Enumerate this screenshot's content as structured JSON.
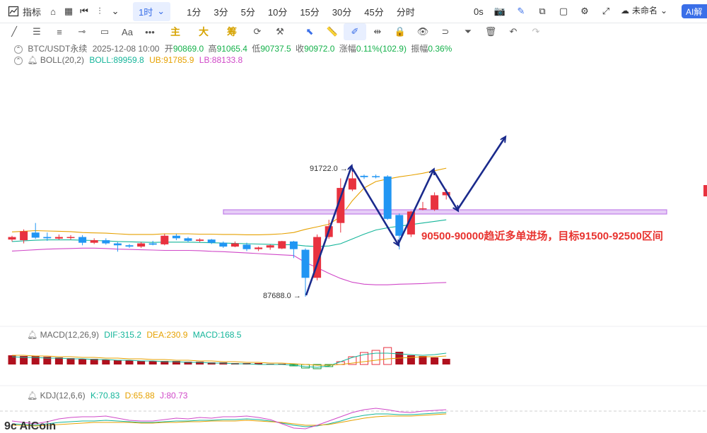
{
  "toolbar": {
    "indicator_label": "指标",
    "intervals": [
      "1时",
      "1分",
      "3分",
      "5分",
      "10分",
      "15分",
      "30分",
      "45分",
      "分时"
    ],
    "active_interval": "1时",
    "timer": "0s",
    "layout_name": "未命名",
    "ai_label": "AI解"
  },
  "drawing_tools": {
    "gold_labels": [
      "主",
      "大",
      "筹"
    ]
  },
  "ohlc": {
    "symbol": "BTC/USDT永续",
    "datetime": "2025-12-08 10:00",
    "open_label": "开",
    "open": "90869.0",
    "high_label": "高",
    "high": "91065.4",
    "low_label": "低",
    "low": "90737.5",
    "close_label": "收",
    "close": "90972.0",
    "change_label": "涨幅",
    "change": "0.11%(102.9)",
    "amplitude_label": "振幅",
    "amplitude": "0.36%"
  },
  "boll": {
    "name": "BOLL(20,2)",
    "boll": "BOLL:89959.8",
    "ub": "UB:91785.9",
    "lb": "LB:88133.8"
  },
  "macd": {
    "name": "MACD(12,26,9)",
    "dif": "DIF:315.2",
    "dea": "DEA:230.9",
    "macd": "MACD:168.5"
  },
  "kdj": {
    "name": "KDJ(12,6,6)",
    "k": "K:70.83",
    "d": "D:65.88",
    "j": "J:80.73"
  },
  "chart_data": {
    "type": "candlestick",
    "high_marker": "91722.0",
    "low_marker": "87688.0",
    "annotation": "90500-90000趋近多单进场，目标91500-92500区间",
    "colors": {
      "up": "#e8323f",
      "down": "#2196f3",
      "zone": "#c07ee8",
      "arrow": "#1a2a8c",
      "ub": "#e6a100",
      "mid": "#14b59a",
      "lb": "#d048c8"
    },
    "candles": [
      {
        "o": 89480,
        "c": 89560,
        "h": 89600,
        "l": 89420
      },
      {
        "o": 89460,
        "c": 89740,
        "h": 89800,
        "l": 89360
      },
      {
        "o": 89700,
        "c": 89540,
        "h": 90000,
        "l": 89500
      },
      {
        "o": 89560,
        "c": 89520,
        "h": 89700,
        "l": 89440
      },
      {
        "o": 89510,
        "c": 89560,
        "h": 89640,
        "l": 89480
      },
      {
        "o": 89540,
        "c": 89560,
        "h": 89620,
        "l": 89480
      },
      {
        "o": 89560,
        "c": 89380,
        "h": 89620,
        "l": 89300
      },
      {
        "o": 89380,
        "c": 89460,
        "h": 89520,
        "l": 89340
      },
      {
        "o": 89460,
        "c": 89360,
        "h": 89520,
        "l": 89320
      },
      {
        "o": 89360,
        "c": 89300,
        "h": 89400,
        "l": 89100
      },
      {
        "o": 89300,
        "c": 89260,
        "h": 89340,
        "l": 89220
      },
      {
        "o": 89260,
        "c": 89360,
        "h": 89400,
        "l": 89220
      },
      {
        "o": 89360,
        "c": 89320,
        "h": 89440,
        "l": 89300
      },
      {
        "o": 89330,
        "c": 89600,
        "h": 89660,
        "l": 89300
      },
      {
        "o": 89600,
        "c": 89520,
        "h": 89660,
        "l": 89460
      },
      {
        "o": 89520,
        "c": 89440,
        "h": 89560,
        "l": 89400
      },
      {
        "o": 89440,
        "c": 89480,
        "h": 89520,
        "l": 89400
      },
      {
        "o": 89480,
        "c": 89380,
        "h": 89500,
        "l": 89340
      },
      {
        "o": 89380,
        "c": 89260,
        "h": 89420,
        "l": 89220
      },
      {
        "o": 89260,
        "c": 89360,
        "h": 89420,
        "l": 89240
      },
      {
        "o": 89320,
        "c": 89180,
        "h": 89380,
        "l": 89120
      },
      {
        "o": 89180,
        "c": 89230,
        "h": 89260,
        "l": 89120
      },
      {
        "o": 89230,
        "c": 89300,
        "h": 89320,
        "l": 89160
      },
      {
        "o": 89200,
        "c": 89430,
        "h": 89440,
        "l": 89180
      },
      {
        "o": 89420,
        "c": 89180,
        "h": 89440,
        "l": 88900
      },
      {
        "o": 89160,
        "c": 88280,
        "h": 89200,
        "l": 87688
      },
      {
        "o": 88280,
        "c": 89560,
        "h": 89640,
        "l": 88200
      },
      {
        "o": 89560,
        "c": 89900,
        "h": 90100,
        "l": 89500
      },
      {
        "o": 90000,
        "c": 91100,
        "h": 91400,
        "l": 89700
      },
      {
        "o": 91050,
        "c": 91400,
        "h": 91722,
        "l": 91000
      },
      {
        "o": 91480,
        "c": 91440,
        "h": 91520,
        "l": 91380
      },
      {
        "o": 91470,
        "c": 91460,
        "h": 91520,
        "l": 91400
      },
      {
        "o": 91460,
        "c": 90130,
        "h": 91500,
        "l": 90100
      },
      {
        "o": 90250,
        "c": 89600,
        "h": 90300,
        "l": 89170
      },
      {
        "o": 89640,
        "c": 90360,
        "h": 90380,
        "l": 89560
      },
      {
        "o": 90430,
        "c": 90460,
        "h": 90660,
        "l": 90400
      },
      {
        "o": 90420,
        "c": 90870,
        "h": 90960,
        "l": 90380
      },
      {
        "o": 90870,
        "c": 90972,
        "h": 91065,
        "l": 90737
      }
    ]
  }
}
